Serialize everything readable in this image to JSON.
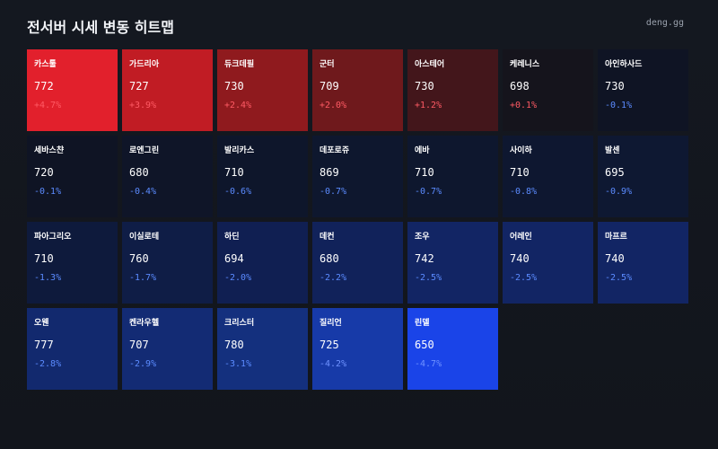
{
  "header": {
    "title": "전서버 시세 변동 히트맵",
    "brand": "deng.gg"
  },
  "colors": {
    "up_text": "#ff5a64",
    "down_text": "#5b8bff",
    "background": "#14171f"
  },
  "chart_data": {
    "type": "heatmap",
    "title": "전서버 시세 변동 히트맵",
    "columns": 7,
    "cells": [
      {
        "server": "카스툴",
        "price": "772",
        "change": 4.7,
        "change_label": "+4.7%",
        "color": "#e2202c"
      },
      {
        "server": "가드리아",
        "price": "727",
        "change": 3.9,
        "change_label": "+3.9%",
        "color": "#c11c24"
      },
      {
        "server": "듀크데필",
        "price": "730",
        "change": 2.4,
        "change_label": "+2.4%",
        "color": "#8f1a1e"
      },
      {
        "server": "군터",
        "price": "709",
        "change": 2.0,
        "change_label": "+2.0%",
        "color": "#6f191c"
      },
      {
        "server": "아스테어",
        "price": "730",
        "change": 1.2,
        "change_label": "+1.2%",
        "color": "#43161b"
      },
      {
        "server": "케레니스",
        "price": "698",
        "change": 0.1,
        "change_label": "+0.1%",
        "color": "#15141c"
      },
      {
        "server": "아인하사드",
        "price": "730",
        "change": -0.1,
        "change_label": "-0.1%",
        "color": "#0f1424"
      },
      {
        "server": "세바스챤",
        "price": "720",
        "change": -0.1,
        "change_label": "-0.1%",
        "color": "#0f1424"
      },
      {
        "server": "로엔그린",
        "price": "680",
        "change": -0.4,
        "change_label": "-0.4%",
        "color": "#0f1528"
      },
      {
        "server": "발리카스",
        "price": "710",
        "change": -0.6,
        "change_label": "-0.6%",
        "color": "#0e162b"
      },
      {
        "server": "데포로쥬",
        "price": "869",
        "change": -0.7,
        "change_label": "-0.7%",
        "color": "#0e172e"
      },
      {
        "server": "에바",
        "price": "710",
        "change": -0.7,
        "change_label": "-0.7%",
        "color": "#0e172e"
      },
      {
        "server": "사이하",
        "price": "710",
        "change": -0.8,
        "change_label": "-0.8%",
        "color": "#0e1730"
      },
      {
        "server": "발센",
        "price": "695",
        "change": -0.9,
        "change_label": "-0.9%",
        "color": "#0e1832"
      },
      {
        "server": "파아그리오",
        "price": "710",
        "change": -1.3,
        "change_label": "-1.3%",
        "color": "#0e1a3c"
      },
      {
        "server": "이실로테",
        "price": "760",
        "change": -1.7,
        "change_label": "-1.7%",
        "color": "#0f1d46"
      },
      {
        "server": "하딘",
        "price": "694",
        "change": -2.0,
        "change_label": "-2.0%",
        "color": "#101f52"
      },
      {
        "server": "데컨",
        "price": "680",
        "change": -2.2,
        "change_label": "-2.2%",
        "color": "#11225a"
      },
      {
        "server": "조우",
        "price": "742",
        "change": -2.5,
        "change_label": "-2.5%",
        "color": "#122564"
      },
      {
        "server": "어레인",
        "price": "740",
        "change": -2.5,
        "change_label": "-2.5%",
        "color": "#122564"
      },
      {
        "server": "마프르",
        "price": "740",
        "change": -2.5,
        "change_label": "-2.5%",
        "color": "#122564"
      },
      {
        "server": "오웬",
        "price": "777",
        "change": -2.8,
        "change_label": "-2.8%",
        "color": "#12296e"
      },
      {
        "server": "켄라우헬",
        "price": "707",
        "change": -2.9,
        "change_label": "-2.9%",
        "color": "#132b74"
      },
      {
        "server": "크리스터",
        "price": "780",
        "change": -3.1,
        "change_label": "-3.1%",
        "color": "#14307e"
      },
      {
        "server": "질리언",
        "price": "725",
        "change": -4.2,
        "change_label": "-4.2%",
        "color": "#173aa8"
      },
      {
        "server": "린델",
        "price": "650",
        "change": -4.7,
        "change_label": "-4.7%",
        "color": "#1a44e8"
      }
    ]
  }
}
